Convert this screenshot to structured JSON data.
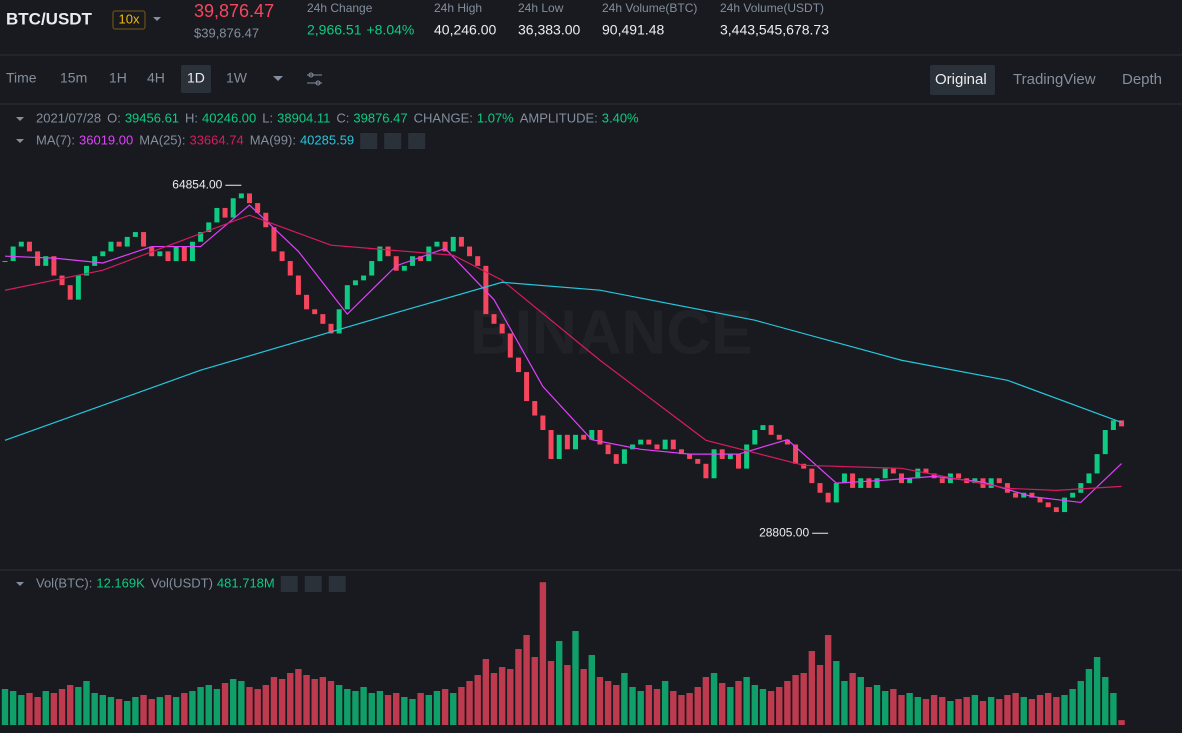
{
  "header": {
    "pair": "BTC/USDT",
    "leverage": "10x",
    "price": "39,876.47",
    "price_usd": "$39,876.47",
    "stats": [
      {
        "label": "24h Change",
        "value": "2,966.51",
        "extra": "+8.04%"
      },
      {
        "label": "24h High",
        "value": "40,246.00"
      },
      {
        "label": "24h Low",
        "value": "36,383.00"
      },
      {
        "label": "24h Volume(BTC)",
        "value": "90,491.48"
      },
      {
        "label": "24h Volume(USDT)",
        "value": "3,443,545,678.73"
      }
    ]
  },
  "toolbar": {
    "intervals": [
      "Time",
      "15m",
      "1H",
      "4H",
      "1D",
      "1W"
    ],
    "active": 4,
    "views": [
      "Original",
      "TradingView",
      "Depth"
    ]
  },
  "legend": {
    "date": "2021/07/28",
    "items": [
      {
        "label": "O:",
        "value": "39456.61"
      },
      {
        "label": "H:",
        "value": "40246.00"
      },
      {
        "label": "L:",
        "value": "38904.11"
      },
      {
        "label": "C:",
        "value": "39876.47"
      },
      {
        "label": "CHANGE:",
        "value": "1.07%"
      },
      {
        "label": "AMPLITUDE:",
        "value": "3.40%"
      }
    ],
    "ma": [
      {
        "label": "MA(7):",
        "value": "36019.00"
      },
      {
        "label": "MA(25):",
        "value": "33664.74"
      },
      {
        "label": "MA(99):",
        "value": "40285.59"
      }
    ],
    "volume": [
      {
        "label": "Vol(BTC):",
        "value": "12.169K"
      },
      {
        "label": "Vol(USDT)",
        "value": "481.718M"
      }
    ]
  },
  "chart_data": {
    "type": "candlestick",
    "watermark": "BINANCE",
    "up_color": "#0ecb81",
    "down_color": "#f6465d",
    "ylim": [
      25000,
      68500
    ],
    "volume_ylim": [
      0,
      360
    ],
    "closes": [
      57000,
      58500,
      59000,
      58000,
      56500,
      57500,
      55500,
      54500,
      53000,
      55500,
      56500,
      57500,
      58000,
      59000,
      58500,
      59500,
      60000,
      58500,
      57500,
      58000,
      57000,
      58500,
      57000,
      59000,
      60000,
      61000,
      62500,
      61500,
      63500,
      64000,
      63000,
      62000,
      60500,
      58000,
      57000,
      55500,
      53500,
      52000,
      51500,
      50500,
      49500,
      52000,
      54500,
      55000,
      55500,
      57000,
      58500,
      57500,
      56000,
      56500,
      57500,
      57000,
      58500,
      59000,
      58000,
      59500,
      58500,
      57500,
      56500,
      51500,
      50500,
      49500,
      47000,
      45500,
      42500,
      41000,
      39500,
      36500,
      39000,
      37500,
      39000,
      38500,
      39500,
      38000,
      37000,
      36000,
      37500,
      38000,
      38500,
      38000,
      37500,
      38500,
      37500,
      37000,
      36500,
      36000,
      34500,
      37500,
      36500,
      37000,
      35500,
      38000,
      39500,
      40000,
      39000,
      38500,
      38000,
      36000,
      35500,
      34000,
      33000,
      32000,
      34000,
      35000,
      33500,
      34500,
      33500,
      34500,
      35500,
      35000,
      34000,
      34500,
      35500,
      35000,
      34500,
      34000,
      35000,
      34500,
      34000,
      34500,
      33500,
      34500,
      34000,
      33000,
      32500,
      33000,
      32500,
      32000,
      31500,
      31000,
      32500,
      33000,
      34000,
      35000,
      37000,
      39500,
      40500,
      39876.47
    ],
    "volumes": [
      90,
      85,
      75,
      80,
      70,
      85,
      80,
      90,
      100,
      95,
      110,
      80,
      75,
      70,
      65,
      60,
      70,
      75,
      65,
      70,
      75,
      70,
      80,
      85,
      95,
      100,
      90,
      105,
      115,
      110,
      95,
      90,
      100,
      120,
      115,
      130,
      140,
      125,
      115,
      120,
      110,
      100,
      90,
      85,
      95,
      80,
      85,
      75,
      80,
      70,
      65,
      80,
      75,
      85,
      90,
      80,
      95,
      110,
      125,
      165,
      130,
      145,
      140,
      190,
      225,
      170,
      357,
      160,
      210,
      150,
      235,
      140,
      175,
      120,
      110,
      100,
      130,
      95,
      85,
      100,
      90,
      110,
      85,
      75,
      80,
      95,
      120,
      130,
      105,
      95,
      110,
      120,
      100,
      90,
      85,
      95,
      110,
      125,
      130,
      185,
      150,
      225,
      160,
      110,
      130,
      120,
      95,
      100,
      85,
      90,
      75,
      80,
      70,
      65,
      75,
      70,
      60,
      65,
      70,
      75,
      60,
      70,
      65,
      75,
      80,
      70,
      65,
      75,
      80,
      70,
      75,
      90,
      110,
      140,
      170,
      120,
      80,
      12.169
    ],
    "annotations": [
      {
        "x": 29,
        "value": 64854,
        "label": "64854.00"
      },
      {
        "x": 101,
        "value": 28805,
        "label": "28805.00"
      }
    ],
    "series": [
      {
        "name": "MA(7):",
        "color": "#e040fb",
        "x": [
          0,
          6,
          12,
          18,
          24,
          30,
          36,
          42,
          48,
          54,
          60,
          66,
          72,
          78,
          84,
          90,
          96,
          102,
          108,
          114,
          120,
          126,
          132,
          137
        ],
        "values": [
          57500,
          57300,
          56800,
          58500,
          58500,
          62800,
          58000,
          51500,
          56500,
          58300,
          53000,
          44000,
          38500,
          37500,
          37000,
          37000,
          38500,
          34000,
          34300,
          34700,
          34100,
          32600,
          32000,
          36019
        ]
      },
      {
        "name": "MA(25):",
        "color": "#d81b60",
        "x": [
          0,
          12,
          30,
          40,
          55,
          61,
          73,
          86,
          98,
          110,
          123,
          129,
          137
        ],
        "values": [
          53976,
          56050,
          61746,
          58640,
          57600,
          55010,
          46725,
          38435,
          35845,
          35530,
          33460,
          33250,
          33664.74
        ]
      },
      {
        "name": "MA(99):",
        "color": "#26c6da",
        "x": [
          0,
          24,
          49,
          61,
          73,
          92,
          110,
          123,
          137
        ],
        "values": [
          38435,
          45690,
          51900,
          54800,
          53980,
          50870,
          46725,
          44650,
          40285.59
        ]
      }
    ]
  }
}
